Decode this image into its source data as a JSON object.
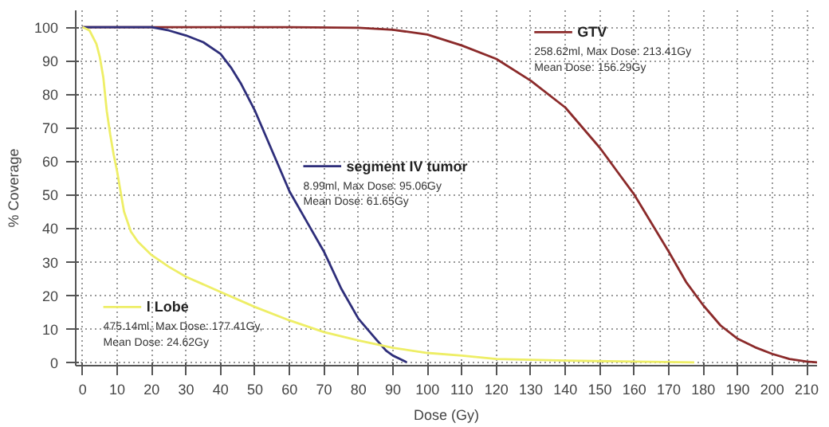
{
  "chart_data": {
    "type": "line",
    "xlabel": "Dose (Gy)",
    "ylabel": "% Coverage",
    "xlim": [
      -2,
      213
    ],
    "ylim": [
      -1,
      105
    ],
    "xticks": [
      0,
      10,
      20,
      30,
      40,
      50,
      60,
      70,
      80,
      90,
      100,
      110,
      120,
      130,
      140,
      150,
      160,
      170,
      180,
      190,
      200,
      210
    ],
    "yticks": [
      0,
      10,
      20,
      30,
      40,
      50,
      60,
      70,
      80,
      90,
      100
    ],
    "grid": true,
    "line_style": "solid",
    "marker": "none",
    "series": [
      {
        "name": "GTV",
        "color": "#8b2a2a",
        "x": [
          0,
          60,
          80,
          90,
          100,
          110,
          120,
          130,
          140,
          150,
          155,
          160,
          165,
          170,
          175,
          180,
          185,
          190,
          195,
          200,
          205,
          210,
          213
        ],
        "values": [
          100,
          100,
          99.8,
          99.2,
          97.8,
          94.5,
          90.5,
          84,
          76,
          64,
          57,
          50,
          41.5,
          33,
          24,
          17,
          11,
          7,
          4.5,
          2.5,
          1,
          0.2,
          0
        ]
      },
      {
        "name": "segment IV tumor",
        "color": "#2e2e7a",
        "x": [
          0,
          20,
          25,
          30,
          35,
          40,
          43,
          46,
          50,
          55,
          60,
          65,
          70,
          75,
          80,
          85,
          88,
          90,
          92,
          94
        ],
        "values": [
          100,
          100,
          99,
          97.5,
          95.5,
          92,
          88,
          83,
          75,
          63,
          51,
          42,
          33,
          22,
          13,
          7,
          3.5,
          2,
          1,
          0
        ]
      },
      {
        "name": "l Lobe",
        "color": "#eeee66",
        "x": [
          0,
          2,
          4,
          5,
          6,
          7,
          8,
          9,
          10,
          12,
          14,
          16,
          20,
          25,
          30,
          40,
          50,
          60,
          70,
          80,
          90,
          100,
          110,
          120,
          140,
          160,
          177.4
        ],
        "values": [
          100,
          99,
          95,
          91,
          85,
          75,
          68,
          62,
          57,
          45,
          39,
          36,
          32,
          28.5,
          25.5,
          21,
          16.5,
          12.5,
          9,
          6.5,
          4.3,
          2.8,
          2,
          1,
          0.5,
          0.2,
          0
        ]
      }
    ],
    "annotations": [
      "258.62ml, Max Dose: 213.41Gy\nMean Dose: 156.29Gy",
      "8.99ml, Max Dose: 95.06Gy\nMean Dose: 61.65Gy",
      "475.14ml, Max Dose: 177.41Gy,\nMean Dose: 24.62Gy"
    ],
    "legend": "center"
  }
}
